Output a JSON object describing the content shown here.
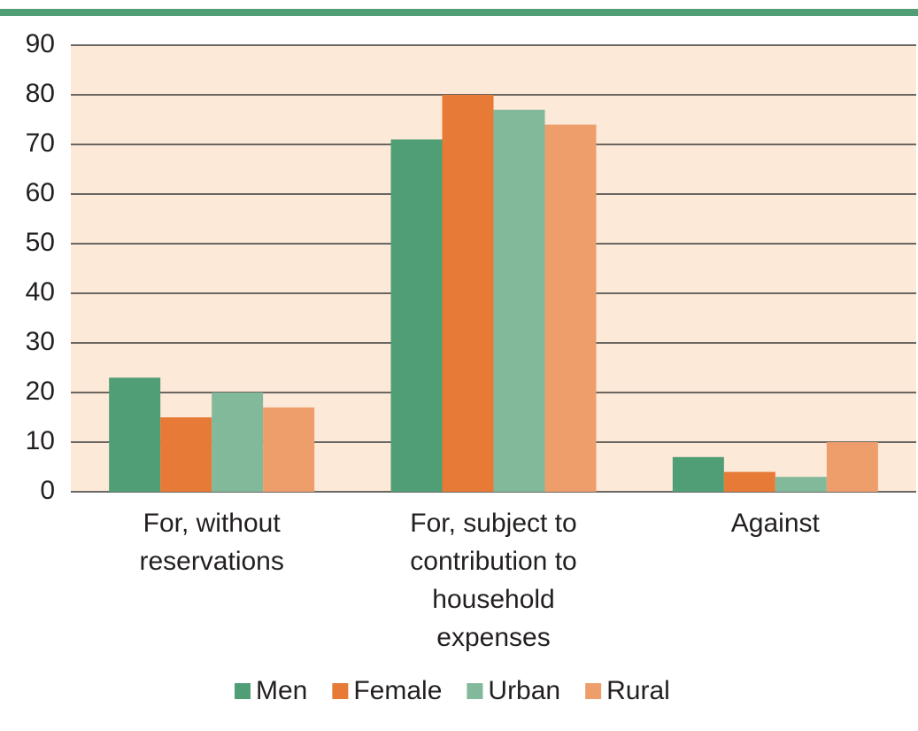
{
  "chart_data": {
    "type": "bar",
    "categories": [
      "For, without reservations",
      "For, subject to contribution to household expenses",
      "Against"
    ],
    "series": [
      {
        "name": "Men",
        "color": "#4f9e75",
        "values": [
          23,
          71,
          7
        ]
      },
      {
        "name": "Female",
        "color": "#e67a36",
        "values": [
          15,
          80,
          4
        ]
      },
      {
        "name": "Urban",
        "color": "#83b99b",
        "values": [
          20,
          77,
          3
        ]
      },
      {
        "name": "Rural",
        "color": "#ee9e6b",
        "values": [
          17,
          74,
          10
        ]
      }
    ],
    "ylim": [
      0,
      90
    ],
    "yticks": [
      0,
      10,
      20,
      30,
      40,
      50,
      60,
      70,
      80,
      90
    ],
    "grid": true,
    "background": "#fde9d7",
    "legend": "bottom"
  }
}
